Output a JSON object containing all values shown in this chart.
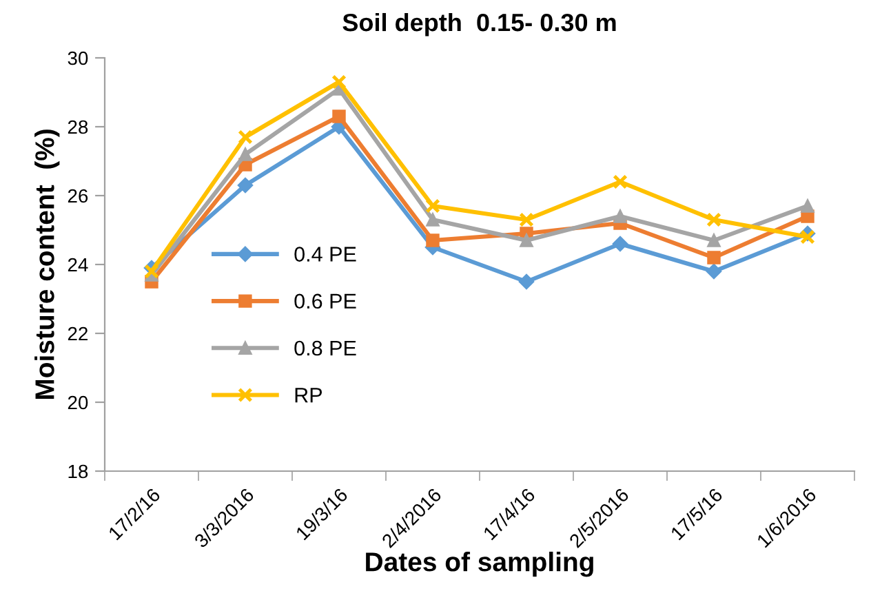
{
  "chart_data": {
    "type": "line",
    "title": "Soil depth  0.15- 0.30 m",
    "xlabel": "Dates of sampling",
    "ylabel": "Moisture content  (%)",
    "categories": [
      "17/2/16",
      "3/3/2016",
      "19/3/16",
      "2/4/2016",
      "17/4/16",
      "2/5/2016",
      "17/5/16",
      "1/6/2016"
    ],
    "series": [
      {
        "name": "0.4 PE",
        "color": "#5b9bd5",
        "marker": "diamond",
        "values": [
          23.9,
          26.3,
          28.0,
          24.5,
          23.5,
          24.6,
          23.8,
          24.9
        ]
      },
      {
        "name": "0.6 PE",
        "color": "#ed7d31",
        "marker": "square",
        "values": [
          23.5,
          26.9,
          28.3,
          24.7,
          24.9,
          25.2,
          24.2,
          25.4
        ]
      },
      {
        "name": "0.8 PE",
        "color": "#a5a5a5",
        "marker": "triangle",
        "values": [
          23.7,
          27.2,
          29.1,
          25.3,
          24.7,
          25.4,
          24.7,
          25.7
        ]
      },
      {
        "name": "RP",
        "color": "#ffc000",
        "marker": "cross",
        "values": [
          23.8,
          27.7,
          29.3,
          25.7,
          25.3,
          26.4,
          25.3,
          24.8
        ]
      }
    ],
    "ylim": [
      18,
      30
    ],
    "yticks": [
      18,
      20,
      22,
      24,
      26,
      28,
      30
    ],
    "grid": false,
    "legend": "left",
    "line_style": "solid"
  }
}
